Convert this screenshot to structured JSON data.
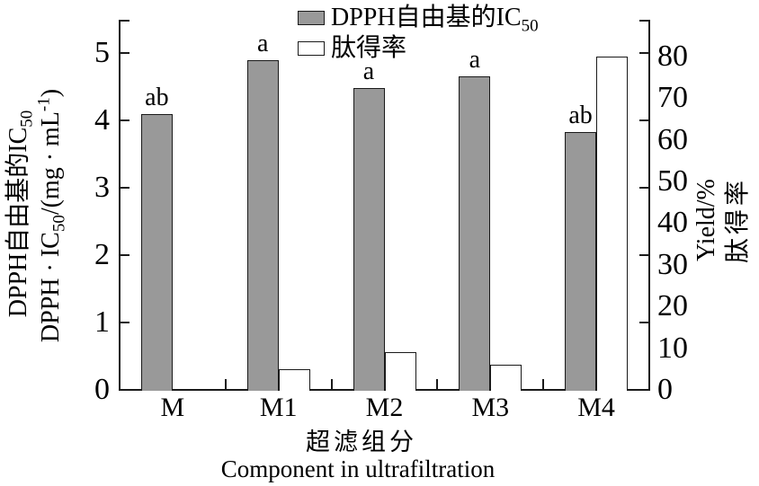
{
  "figure": {
    "legend": {
      "items": [
        {
          "swatch_color": "#999999",
          "label": "DPPH自由基的IC",
          "sub": "50"
        },
        {
          "swatch_color": "#ffffff",
          "label": "肽得率",
          "sub": ""
        }
      ]
    },
    "left_axis_title": {
      "line1_main": "DPPH自由基的IC",
      "line1_sub": "50",
      "line2_p1": "DPPH · IC",
      "line2_sub": "50",
      "line2_p2": "/(mg · mL",
      "line2_sup": "-1",
      "line2_p3": ")"
    },
    "right_axis_title": {
      "line1": "Yield/%",
      "line2": "肽得率"
    },
    "x_axis_title": {
      "zh": "超滤组分",
      "en": "Component in ultrafiltration"
    }
  },
  "chart_data": {
    "type": "bar",
    "categories": [
      "M",
      "M1",
      "M2",
      "M3",
      "M4"
    ],
    "series": [
      {
        "name": "DPPH自由基的IC50",
        "axis": "left",
        "fill": "#999999",
        "values": [
          4.1,
          4.9,
          4.48,
          4.65,
          3.83
        ]
      },
      {
        "name": "肽得率",
        "axis": "right",
        "fill": "#ffffff",
        "values": [
          0,
          5,
          9,
          6,
          80
        ]
      }
    ],
    "bar_annotations": [
      "ab",
      "a",
      "a",
      "a",
      "ab"
    ],
    "left_axis": {
      "label": "DPPH自由基的IC50  DPPH·IC50/(mg·mL-1)",
      "ticks": [
        0,
        1,
        2,
        3,
        4,
        5
      ],
      "range": [
        0,
        5.5
      ]
    },
    "right_axis": {
      "label": "Yield/% 肽得率",
      "tick_labels": [
        0,
        10,
        20,
        30,
        40,
        50,
        60,
        70,
        80
      ],
      "range": [
        0,
        88
      ]
    },
    "xlabel_zh": "超滤组分",
    "xlabel_en": "Component in ultrafiltration",
    "legend_position": "top-center",
    "grid": false,
    "colors": {
      "bar_gray": "#999999",
      "bar_white": "#ffffff",
      "line": "#1a1a1a"
    }
  }
}
